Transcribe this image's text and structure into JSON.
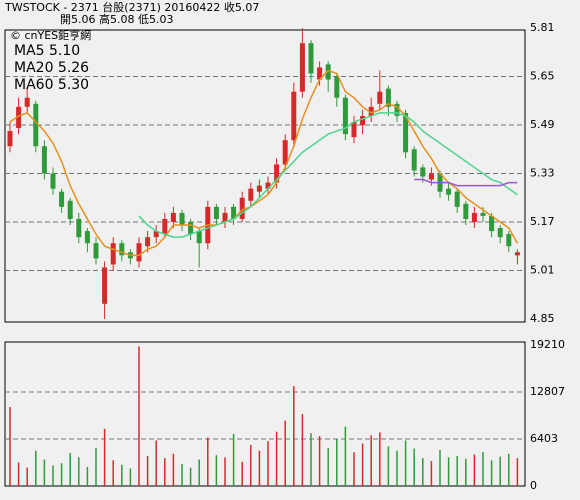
{
  "header": {
    "title": "TWSTOCK  -  2371  台股(2371) 20160422   收5.07",
    "subtitle": "開5.06    高5.08    低5.03",
    "source": "© cnYES鉅亨網"
  },
  "chart_data": [
    {
      "type": "candlestick",
      "ylim": [
        4.84,
        5.82
      ],
      "yticks": [
        4.85,
        5.01,
        5.17,
        5.33,
        5.49,
        5.65,
        5.81
      ],
      "grid": true,
      "up_color": "#d42a2a",
      "down_color": "#2f9a3a",
      "open": [
        5.42,
        5.48,
        5.55,
        5.56,
        5.42,
        5.33,
        5.27,
        5.24,
        5.18,
        5.14,
        5.1,
        4.9,
        5.03,
        5.1,
        5.07,
        5.04,
        5.09,
        5.12,
        5.13,
        5.17,
        5.2,
        5.17,
        5.14,
        5.1,
        5.22,
        5.17,
        5.22,
        5.18,
        5.24,
        5.27,
        5.28,
        5.3,
        5.36,
        5.44,
        5.6,
        5.76,
        5.64,
        5.69,
        5.65,
        5.58,
        5.45,
        5.49,
        5.52,
        5.56,
        5.61,
        5.56,
        5.53,
        5.41,
        5.35,
        5.31,
        5.33,
        5.28,
        5.27,
        5.23,
        5.17,
        5.2,
        5.19,
        5.15,
        5.13,
        5.06
      ],
      "high": [
        5.5,
        5.58,
        5.61,
        5.57,
        5.44,
        5.35,
        5.28,
        5.25,
        5.2,
        5.15,
        5.12,
        5.04,
        5.12,
        5.11,
        5.08,
        5.12,
        5.14,
        5.16,
        5.2,
        5.22,
        5.21,
        5.18,
        5.15,
        5.24,
        5.23,
        5.22,
        5.23,
        5.27,
        5.3,
        5.31,
        5.32,
        5.38,
        5.46,
        5.63,
        5.81,
        5.77,
        5.7,
        5.7,
        5.66,
        5.59,
        5.52,
        5.54,
        5.58,
        5.67,
        5.62,
        5.57,
        5.54,
        5.42,
        5.36,
        5.35,
        5.34,
        5.3,
        5.28,
        5.24,
        5.22,
        5.22,
        5.2,
        5.16,
        5.14,
        5.08
      ],
      "low": [
        5.4,
        5.46,
        5.53,
        5.4,
        5.31,
        5.26,
        5.2,
        5.16,
        5.1,
        5.07,
        5.03,
        4.85,
        5.01,
        5.04,
        5.03,
        5.02,
        5.07,
        5.1,
        5.12,
        5.15,
        5.14,
        5.11,
        5.02,
        5.08,
        5.16,
        5.15,
        5.16,
        5.17,
        5.22,
        5.25,
        5.26,
        5.28,
        5.34,
        5.42,
        5.58,
        5.63,
        5.62,
        5.6,
        5.55,
        5.44,
        5.43,
        5.46,
        5.5,
        5.54,
        5.52,
        5.5,
        5.38,
        5.32,
        5.3,
        5.29,
        5.25,
        5.24,
        5.2,
        5.16,
        5.15,
        5.17,
        5.12,
        5.1,
        5.07,
        5.03
      ],
      "close": [
        5.47,
        5.55,
        5.58,
        5.42,
        5.33,
        5.28,
        5.22,
        5.18,
        5.12,
        5.1,
        5.05,
        5.02,
        5.1,
        5.06,
        5.05,
        5.1,
        5.12,
        5.14,
        5.18,
        5.2,
        5.16,
        5.13,
        5.1,
        5.22,
        5.18,
        5.2,
        5.18,
        5.25,
        5.28,
        5.29,
        5.3,
        5.36,
        5.44,
        5.6,
        5.76,
        5.66,
        5.68,
        5.64,
        5.58,
        5.46,
        5.5,
        5.52,
        5.55,
        5.6,
        5.55,
        5.52,
        5.4,
        5.34,
        5.32,
        5.33,
        5.27,
        5.26,
        5.22,
        5.18,
        5.2,
        5.19,
        5.14,
        5.12,
        5.09,
        5.07
      ],
      "series": [
        {
          "name": "MA5 5.10",
          "color": "#e8901e",
          "values": [
            5.5,
            5.52,
            5.53,
            5.5,
            5.47,
            5.43,
            5.37,
            5.29,
            5.23,
            5.18,
            5.13,
            5.09,
            5.08,
            5.07,
            5.06,
            5.06,
            5.08,
            5.09,
            5.12,
            5.16,
            5.16,
            5.16,
            5.15,
            5.16,
            5.16,
            5.17,
            5.18,
            5.21,
            5.22,
            5.24,
            5.26,
            5.3,
            5.35,
            5.42,
            5.51,
            5.58,
            5.64,
            5.67,
            5.66,
            5.6,
            5.58,
            5.55,
            5.53,
            5.54,
            5.56,
            5.55,
            5.52,
            5.47,
            5.42,
            5.38,
            5.33,
            5.3,
            5.28,
            5.25,
            5.23,
            5.21,
            5.19,
            5.17,
            5.15,
            5.1
          ]
        },
        {
          "name": "MA20 5.26",
          "color": "#4fd48e",
          "values": [
            null,
            null,
            null,
            null,
            null,
            null,
            null,
            null,
            null,
            null,
            null,
            null,
            null,
            null,
            null,
            5.19,
            5.16,
            5.14,
            5.13,
            5.12,
            5.12,
            5.13,
            5.14,
            5.15,
            5.16,
            5.17,
            5.18,
            5.2,
            5.22,
            5.25,
            5.28,
            5.31,
            5.34,
            5.37,
            5.4,
            5.42,
            5.44,
            5.46,
            5.47,
            5.48,
            5.5,
            5.51,
            5.52,
            5.53,
            5.53,
            5.53,
            5.52,
            5.5,
            5.47,
            5.45,
            5.43,
            5.41,
            5.39,
            5.37,
            5.35,
            5.33,
            5.31,
            5.3,
            5.28,
            5.26
          ]
        },
        {
          "name": "MA60 5.30",
          "color": "#9a55d8",
          "values": [
            null,
            null,
            null,
            null,
            null,
            null,
            null,
            null,
            null,
            null,
            null,
            null,
            null,
            null,
            null,
            null,
            null,
            null,
            null,
            null,
            null,
            null,
            null,
            null,
            null,
            null,
            null,
            null,
            null,
            null,
            null,
            null,
            null,
            null,
            null,
            null,
            null,
            null,
            null,
            null,
            null,
            null,
            null,
            null,
            null,
            null,
            null,
            5.31,
            5.31,
            5.3,
            5.3,
            5.3,
            5.29,
            5.29,
            5.29,
            5.29,
            5.29,
            5.29,
            5.3,
            5.3
          ]
        }
      ]
    },
    {
      "type": "bar",
      "ylim": [
        0,
        19210
      ],
      "yticks": [
        0,
        6403,
        12807,
        19210
      ],
      "grid": true,
      "values": [
        10760,
        3200,
        2500,
        4800,
        3600,
        2800,
        3100,
        4500,
        3900,
        2600,
        5200,
        7800,
        3500,
        2900,
        2400,
        19000,
        4100,
        6200,
        3800,
        4400,
        3000,
        2500,
        3600,
        6600,
        4200,
        3900,
        7100,
        3300,
        5600,
        4800,
        6100,
        7400,
        8900,
        13600,
        9800,
        7200,
        6800,
        5200,
        6400,
        8100,
        4600,
        5800,
        6900,
        7300,
        5400,
        4800,
        6200,
        5100,
        3800,
        3400,
        4900,
        3900,
        4100,
        3700,
        4300,
        4600,
        3500,
        4000,
        4400,
        3800
      ]
    }
  ]
}
